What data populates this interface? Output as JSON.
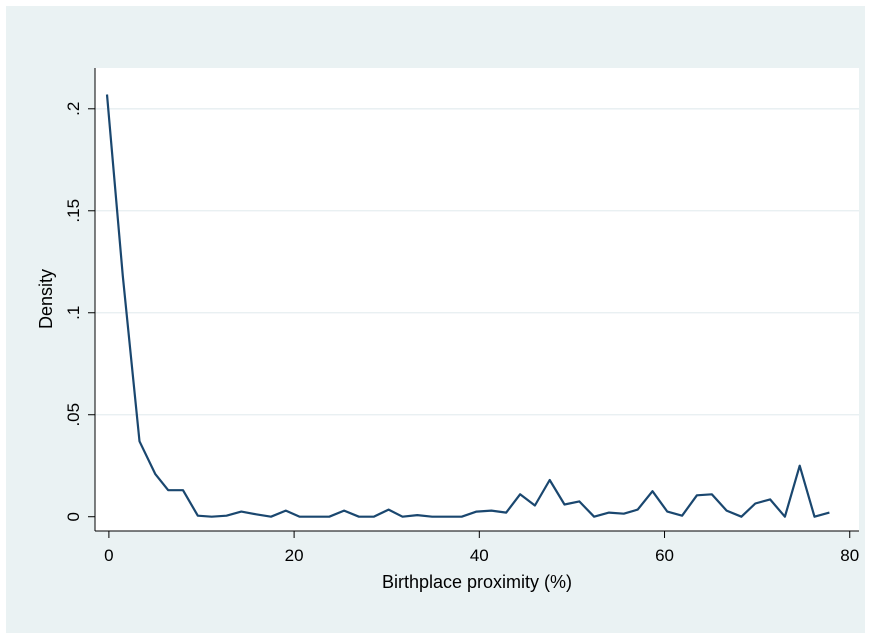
{
  "chart_data": {
    "type": "line",
    "title": "",
    "xlabel": "Birthplace proximity (%)",
    "ylabel": "Density",
    "xlim": [
      -1.5,
      81
    ],
    "ylim": [
      -0.007,
      0.22
    ],
    "xticks": [
      0,
      20,
      40,
      60,
      80
    ],
    "xtick_labels": [
      "0",
      "20",
      "40",
      "60",
      "80"
    ],
    "yticks": [
      0,
      0.05,
      0.1,
      0.15,
      0.2
    ],
    "ytick_labels": [
      "0",
      ".05",
      ".1",
      ".15",
      ".2"
    ],
    "grid": "horizontal",
    "colors": {
      "line": "#1a476f",
      "plot_bg": "#ffffff",
      "outer_bg": "#eaf2f3",
      "grid": "#e6eef1"
    },
    "x": [
      -0.2,
      1.5,
      3.3,
      5.0,
      6.4,
      8.0,
      9.6,
      11.1,
      12.7,
      14.3,
      15.9,
      17.5,
      19.1,
      20.6,
      22.2,
      23.8,
      25.4,
      27.0,
      28.6,
      30.2,
      31.7,
      33.3,
      34.9,
      36.5,
      38.1,
      39.7,
      41.3,
      42.9,
      44.4,
      46.0,
      47.6,
      49.2,
      50.8,
      52.4,
      54.0,
      55.6,
      57.1,
      58.7,
      60.3,
      61.9,
      63.5,
      65.1,
      66.7,
      68.3,
      69.8,
      71.4,
      73.0,
      74.6,
      76.2,
      77.8
    ],
    "y": [
      0.207,
      0.118,
      0.037,
      0.021,
      0.013,
      0.013,
      0.0005,
      0.0,
      0.0005,
      0.0025,
      0.0012,
      0.0,
      0.003,
      0.0,
      0.0,
      0.0,
      0.003,
      0.0,
      0.0,
      0.0035,
      0.0,
      0.0008,
      0.0,
      0.0,
      0.0,
      0.0025,
      0.003,
      0.002,
      0.011,
      0.0055,
      0.018,
      0.006,
      0.0075,
      0.0,
      0.002,
      0.0015,
      0.0035,
      0.0125,
      0.0025,
      0.0005,
      0.0105,
      0.011,
      0.003,
      0.0,
      0.0065,
      0.0085,
      0.0,
      0.025,
      0.0,
      0.002
    ]
  }
}
